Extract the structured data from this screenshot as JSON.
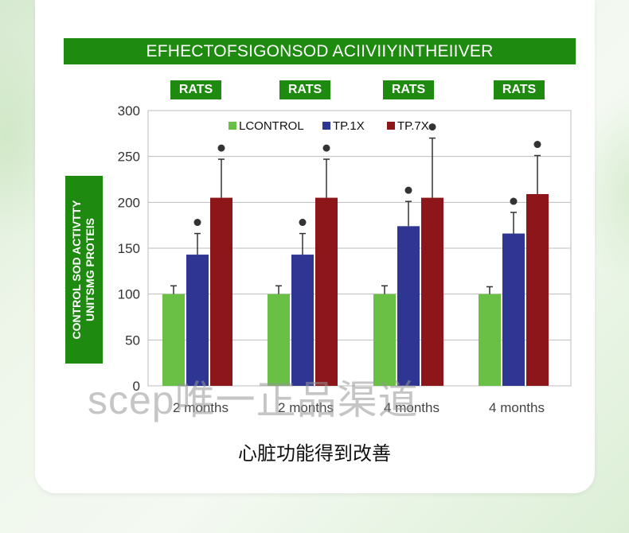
{
  "chart_data": {
    "type": "bar",
    "title": "EFHECTOFSIGONSOD ACIIVIIYINTHEIIVER",
    "group_labels": [
      "RATS",
      "RATS",
      "RATS",
      "RATS"
    ],
    "categories": [
      "2 months",
      "2 months",
      "4 months",
      "4 months"
    ],
    "ylabel": [
      "CONTROL SOD ACTIVTTY",
      "UNITSMG PROTEIS"
    ],
    "ylim": [
      0,
      300
    ],
    "yticks": [
      0,
      50,
      100,
      150,
      200,
      250,
      300
    ],
    "grid": true,
    "legend_position": "top",
    "series": [
      {
        "name": "LCONTROL",
        "color": "#6abf45",
        "values": [
          100,
          100,
          100,
          100
        ],
        "errors": [
          9,
          9,
          9,
          8
        ],
        "marked": [
          false,
          false,
          false,
          false
        ]
      },
      {
        "name": "TP.1X",
        "color": "#2f3592",
        "values": [
          143,
          143,
          174,
          166
        ],
        "errors": [
          23,
          23,
          27,
          23
        ],
        "marked": [
          true,
          true,
          true,
          true
        ]
      },
      {
        "name": "TP.7X",
        "color": "#8c161a",
        "values": [
          205,
          205,
          205,
          209
        ],
        "errors": [
          42,
          42,
          65,
          42
        ],
        "marked": [
          true,
          true,
          true,
          true
        ]
      }
    ]
  },
  "caption": "心脏功能得到改善",
  "watermark": "scep唯一正品渠道"
}
